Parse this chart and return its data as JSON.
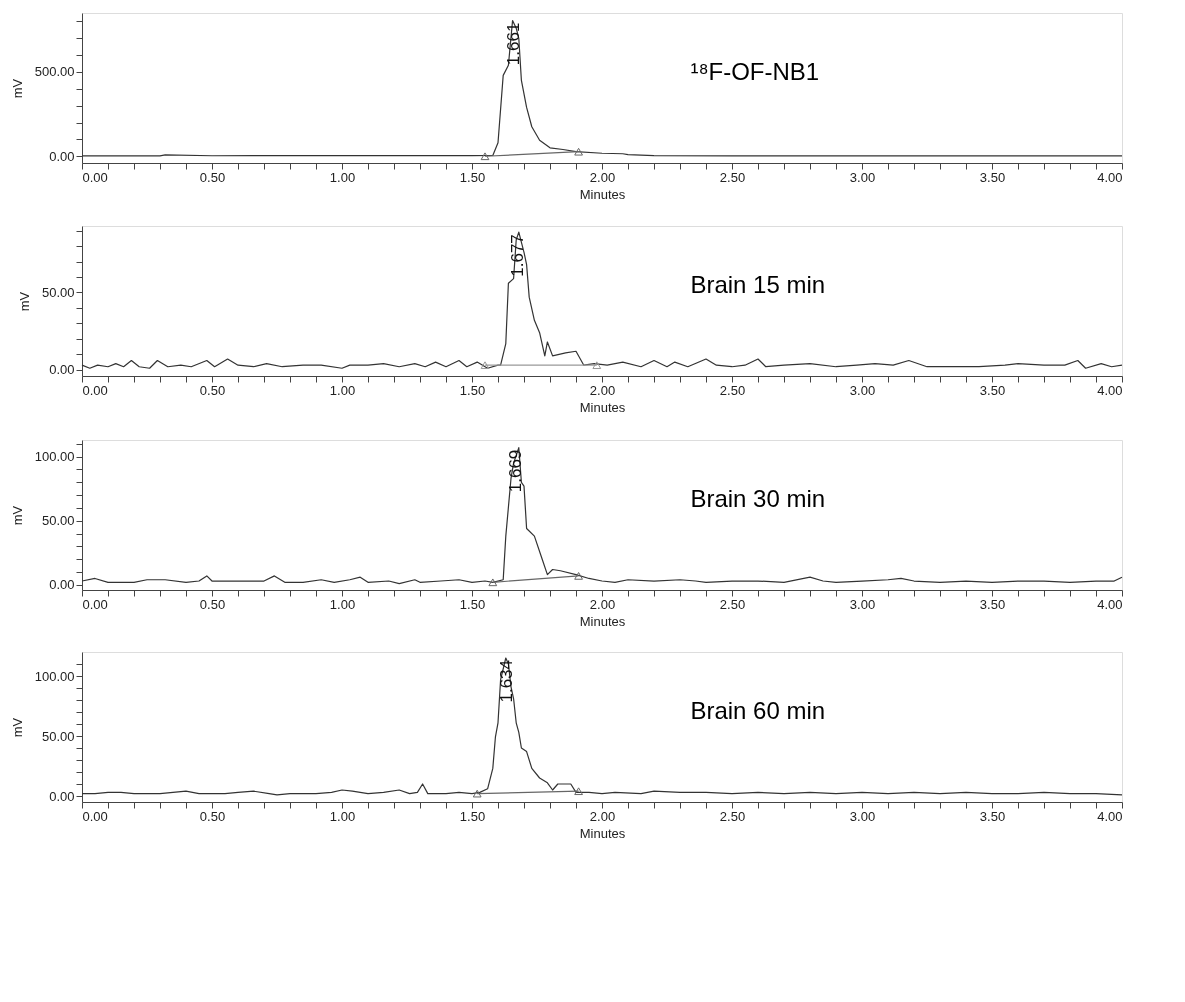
{
  "chart_data": [
    {
      "type": "line",
      "title": "¹⁸F-OF-NB1",
      "xlabel": "Minutes",
      "ylabel": "mV",
      "grid": false,
      "xlim": [
        0,
        4
      ],
      "xticks": [
        {
          "value": 0,
          "label": "0.00"
        },
        {
          "value": 0.1,
          "label": null
        },
        {
          "value": 0.2,
          "label": null
        },
        {
          "value": 0.3,
          "label": null
        },
        {
          "value": 0.4,
          "label": null
        },
        {
          "value": 0.5,
          "label": "0.50"
        },
        {
          "value": 0.6,
          "label": null
        },
        {
          "value": 0.7,
          "label": null
        },
        {
          "value": 0.8,
          "label": null
        },
        {
          "value": 0.9,
          "label": null
        },
        {
          "value": 1,
          "label": "1.00"
        },
        {
          "value": 1.1,
          "label": null
        },
        {
          "value": 1.2,
          "label": null
        },
        {
          "value": 1.3,
          "label": null
        },
        {
          "value": 1.4,
          "label": null
        },
        {
          "value": 1.5,
          "label": "1.50"
        },
        {
          "value": 1.6,
          "label": null
        },
        {
          "value": 1.7,
          "label": null
        },
        {
          "value": 1.8,
          "label": null
        },
        {
          "value": 1.9,
          "label": null
        },
        {
          "value": 2,
          "label": "2.00"
        },
        {
          "value": 2.1,
          "label": null
        },
        {
          "value": 2.2,
          "label": null
        },
        {
          "value": 2.3,
          "label": null
        },
        {
          "value": 2.4,
          "label": null
        },
        {
          "value": 2.5,
          "label": "2.50"
        },
        {
          "value": 2.6,
          "label": null
        },
        {
          "value": 2.7,
          "label": null
        },
        {
          "value": 2.8,
          "label": null
        },
        {
          "value": 2.9,
          "label": null
        },
        {
          "value": 3,
          "label": "3.00"
        },
        {
          "value": 3.1,
          "label": null
        },
        {
          "value": 3.2,
          "label": null
        },
        {
          "value": 3.3,
          "label": null
        },
        {
          "value": 3.4,
          "label": null
        },
        {
          "value": 3.5,
          "label": "3.50"
        },
        {
          "value": 3.6,
          "label": null
        },
        {
          "value": 3.7,
          "label": null
        },
        {
          "value": 3.8,
          "label": null
        },
        {
          "value": 3.9,
          "label": null
        },
        {
          "value": 4,
          "label": "4.00"
        }
      ],
      "ylim": [
        -40,
        850
      ],
      "yticks": [
        {
          "value": 0,
          "label": "0.00"
        },
        {
          "value": 100,
          "label": null
        },
        {
          "value": 200,
          "label": null
        },
        {
          "value": 300,
          "label": null
        },
        {
          "value": 400,
          "label": null
        },
        {
          "value": 500,
          "label": "500.00"
        },
        {
          "value": 600,
          "label": null
        },
        {
          "value": 700,
          "label": null
        },
        {
          "value": 800,
          "label": null
        }
      ],
      "series": [
        {
          "color": "#333333",
          "x": [
            0,
            0.3,
            0.32,
            0.5,
            1.0,
            1.5,
            1.58,
            1.6,
            1.62,
            1.64,
            1.656,
            1.67,
            1.68,
            1.69,
            1.71,
            1.73,
            1.76,
            1.8,
            1.85,
            1.9,
            2.0,
            2.08,
            2.1,
            2.2,
            2.5,
            3.0,
            3.5,
            4.0
          ],
          "values": [
            2,
            2,
            8,
            3,
            4,
            4,
            5,
            80,
            480,
            540,
            805,
            760,
            700,
            450,
            290,
            175,
            95,
            50,
            40,
            28,
            18,
            15,
            10,
            4,
            2,
            2,
            2,
            2
          ]
        },
        {
          "color": "#666666",
          "marker": "triangle",
          "x": [
            1.55,
            1.91
          ],
          "values": [
            0,
            27
          ]
        }
      ],
      "annotations": [
        {
          "text": "1.661",
          "x": 1.661,
          "y": 805
        }
      ]
    },
    {
      "type": "line",
      "title": "Brain 15 min",
      "xlabel": "Minutes",
      "ylabel": "mV",
      "grid": false,
      "xlim": [
        0,
        4
      ],
      "xticks": [
        {
          "value": 0,
          "label": "0.00"
        },
        {
          "value": 0.1,
          "label": null
        },
        {
          "value": 0.2,
          "label": null
        },
        {
          "value": 0.3,
          "label": null
        },
        {
          "value": 0.4,
          "label": null
        },
        {
          "value": 0.5,
          "label": "0.50"
        },
        {
          "value": 0.6,
          "label": null
        },
        {
          "value": 0.7,
          "label": null
        },
        {
          "value": 0.8,
          "label": null
        },
        {
          "value": 0.9,
          "label": null
        },
        {
          "value": 1,
          "label": "1.00"
        },
        {
          "value": 1.1,
          "label": null
        },
        {
          "value": 1.2,
          "label": null
        },
        {
          "value": 1.3,
          "label": null
        },
        {
          "value": 1.4,
          "label": null
        },
        {
          "value": 1.5,
          "label": "1.50"
        },
        {
          "value": 1.6,
          "label": null
        },
        {
          "value": 1.7,
          "label": null
        },
        {
          "value": 1.8,
          "label": null
        },
        {
          "value": 1.9,
          "label": null
        },
        {
          "value": 2,
          "label": "2.00"
        },
        {
          "value": 2.1,
          "label": null
        },
        {
          "value": 2.2,
          "label": null
        },
        {
          "value": 2.3,
          "label": null
        },
        {
          "value": 2.4,
          "label": null
        },
        {
          "value": 2.5,
          "label": "2.50"
        },
        {
          "value": 2.6,
          "label": null
        },
        {
          "value": 2.7,
          "label": null
        },
        {
          "value": 2.8,
          "label": null
        },
        {
          "value": 2.9,
          "label": null
        },
        {
          "value": 3,
          "label": "3.00"
        },
        {
          "value": 3.1,
          "label": null
        },
        {
          "value": 3.2,
          "label": null
        },
        {
          "value": 3.3,
          "label": null
        },
        {
          "value": 3.4,
          "label": null
        },
        {
          "value": 3.5,
          "label": "3.50"
        },
        {
          "value": 3.6,
          "label": null
        },
        {
          "value": 3.7,
          "label": null
        },
        {
          "value": 3.8,
          "label": null
        },
        {
          "value": 3.9,
          "label": null
        },
        {
          "value": 4,
          "label": "4.00"
        }
      ],
      "ylim": [
        -4,
        93
      ],
      "yticks": [
        {
          "value": 0,
          "label": "0.00"
        },
        {
          "value": 10,
          "label": null
        },
        {
          "value": 20,
          "label": null
        },
        {
          "value": 30,
          "label": null
        },
        {
          "value": 40,
          "label": null
        },
        {
          "value": 50,
          "label": "50.00"
        },
        {
          "value": 60,
          "label": null
        },
        {
          "value": 70,
          "label": null
        },
        {
          "value": 80,
          "label": null
        },
        {
          "value": 90,
          "label": null
        }
      ],
      "series": [
        {
          "color": "#333333",
          "x": [
            0,
            0.03,
            0.06,
            0.1,
            0.13,
            0.16,
            0.19,
            0.22,
            0.26,
            0.29,
            0.33,
            0.38,
            0.42,
            0.48,
            0.51,
            0.56,
            0.6,
            0.66,
            0.71,
            0.77,
            0.85,
            0.92,
            1.0,
            1.03,
            1.1,
            1.16,
            1.22,
            1.28,
            1.32,
            1.36,
            1.4,
            1.45,
            1.48,
            1.52,
            1.56,
            1.6,
            1.61,
            1.63,
            1.64,
            1.66,
            1.67,
            1.68,
            1.7,
            1.71,
            1.72,
            1.74,
            1.76,
            1.78,
            1.79,
            1.81,
            1.86,
            1.9,
            1.93,
            1.97,
            2.02,
            2.08,
            2.15,
            2.2,
            2.25,
            2.28,
            2.33,
            2.4,
            2.44,
            2.5,
            2.55,
            2.6,
            2.63,
            2.7,
            2.8,
            2.9,
            2.98,
            3.05,
            3.12,
            3.18,
            3.25,
            3.35,
            3.45,
            3.55,
            3.6,
            3.7,
            3.78,
            3.83,
            3.86,
            3.92,
            3.96,
            4.0
          ],
          "values": [
            3,
            1,
            3,
            2,
            4,
            2,
            6,
            2,
            1,
            6,
            2,
            3,
            2,
            6,
            2,
            7,
            3,
            2,
            4,
            2,
            3,
            3,
            1,
            3,
            3,
            4,
            2,
            4,
            2,
            5,
            2,
            6,
            2,
            5,
            1,
            3,
            3,
            17,
            56,
            59,
            84,
            89,
            76,
            68,
            47,
            32,
            24,
            9,
            18,
            9,
            11,
            12,
            3,
            4,
            3,
            5,
            2,
            6,
            2,
            5,
            2,
            7,
            3,
            2,
            3,
            7,
            2,
            3,
            4,
            2,
            3,
            4,
            3,
            6,
            2,
            2,
            2,
            3,
            4,
            3,
            3,
            6,
            1,
            4,
            2,
            3
          ]
        },
        {
          "color": "#999999",
          "marker": "triangle",
          "x": [
            1.55,
            1.98
          ],
          "values": [
            3,
            3
          ]
        }
      ],
      "annotations": [
        {
          "text": "1.677",
          "x": 1.677,
          "y": 89
        }
      ]
    },
    {
      "type": "line",
      "title": "Brain 30 min",
      "xlabel": "Minutes",
      "ylabel": "mV",
      "grid": false,
      "xlim": [
        0,
        4
      ],
      "xticks": [
        {
          "value": 0,
          "label": "0.00"
        },
        {
          "value": 0.1,
          "label": null
        },
        {
          "value": 0.2,
          "label": null
        },
        {
          "value": 0.3,
          "label": null
        },
        {
          "value": 0.4,
          "label": null
        },
        {
          "value": 0.5,
          "label": "0.50"
        },
        {
          "value": 0.6,
          "label": null
        },
        {
          "value": 0.7,
          "label": null
        },
        {
          "value": 0.8,
          "label": null
        },
        {
          "value": 0.9,
          "label": null
        },
        {
          "value": 1,
          "label": "1.00"
        },
        {
          "value": 1.1,
          "label": null
        },
        {
          "value": 1.2,
          "label": null
        },
        {
          "value": 1.3,
          "label": null
        },
        {
          "value": 1.4,
          "label": null
        },
        {
          "value": 1.5,
          "label": "1.50"
        },
        {
          "value": 1.6,
          "label": null
        },
        {
          "value": 1.7,
          "label": null
        },
        {
          "value": 1.8,
          "label": null
        },
        {
          "value": 1.9,
          "label": null
        },
        {
          "value": 2,
          "label": "2.00"
        },
        {
          "value": 2.1,
          "label": null
        },
        {
          "value": 2.2,
          "label": null
        },
        {
          "value": 2.3,
          "label": null
        },
        {
          "value": 2.4,
          "label": null
        },
        {
          "value": 2.5,
          "label": "2.50"
        },
        {
          "value": 2.6,
          "label": null
        },
        {
          "value": 2.7,
          "label": null
        },
        {
          "value": 2.8,
          "label": null
        },
        {
          "value": 2.9,
          "label": null
        },
        {
          "value": 3,
          "label": "3.00"
        },
        {
          "value": 3.1,
          "label": null
        },
        {
          "value": 3.2,
          "label": null
        },
        {
          "value": 3.3,
          "label": null
        },
        {
          "value": 3.4,
          "label": null
        },
        {
          "value": 3.5,
          "label": "3.50"
        },
        {
          "value": 3.6,
          "label": null
        },
        {
          "value": 3.7,
          "label": null
        },
        {
          "value": 3.8,
          "label": null
        },
        {
          "value": 3.9,
          "label": null
        },
        {
          "value": 4,
          "label": "4.00"
        }
      ],
      "ylim": [
        -4,
        113
      ],
      "yticks": [
        {
          "value": 0,
          "label": "0.00"
        },
        {
          "value": 10,
          "label": null
        },
        {
          "value": 20,
          "label": null
        },
        {
          "value": 30,
          "label": null
        },
        {
          "value": 40,
          "label": null
        },
        {
          "value": 50,
          "label": "50.00"
        },
        {
          "value": 60,
          "label": null
        },
        {
          "value": 70,
          "label": null
        },
        {
          "value": 80,
          "label": null
        },
        {
          "value": 90,
          "label": null
        },
        {
          "value": 100,
          "label": "100.00"
        },
        {
          "value": 110,
          "label": null
        }
      ],
      "series": [
        {
          "color": "#333333",
          "x": [
            0,
            0.05,
            0.1,
            0.2,
            0.25,
            0.32,
            0.4,
            0.45,
            0.48,
            0.5,
            0.6,
            0.7,
            0.74,
            0.78,
            0.85,
            0.92,
            0.97,
            1.03,
            1.07,
            1.1,
            1.18,
            1.22,
            1.28,
            1.3,
            1.38,
            1.45,
            1.5,
            1.55,
            1.58,
            1.62,
            1.63,
            1.65,
            1.66,
            1.68,
            1.69,
            1.7,
            1.71,
            1.74,
            1.77,
            1.79,
            1.81,
            1.84,
            1.9,
            1.95,
            2.0,
            2.05,
            2.1,
            2.2,
            2.3,
            2.36,
            2.4,
            2.5,
            2.6,
            2.7,
            2.8,
            2.85,
            2.9,
            3.0,
            3.1,
            3.15,
            3.2,
            3.3,
            3.4,
            3.5,
            3.6,
            3.7,
            3.8,
            3.9,
            3.97,
            4.0
          ],
          "values": [
            3,
            5,
            2,
            2,
            4,
            4,
            2,
            3,
            7,
            3,
            3,
            3,
            7,
            2,
            2,
            4,
            2,
            4,
            6,
            2,
            3,
            1,
            4,
            2,
            3,
            4,
            2,
            3,
            2,
            4,
            38,
            83,
            95,
            107,
            80,
            77,
            44,
            38,
            20,
            8,
            12,
            11,
            8,
            5,
            3,
            2,
            4,
            3,
            4,
            3,
            2,
            3,
            3,
            2,
            6,
            3,
            2,
            3,
            4,
            5,
            3,
            2,
            3,
            2,
            3,
            3,
            2,
            3,
            3,
            6
          ]
        },
        {
          "color": "#666666",
          "marker": "triangle",
          "x": [
            1.58,
            1.91
          ],
          "values": [
            2,
            7
          ]
        }
      ],
      "annotations": [
        {
          "text": "1.669",
          "x": 1.669,
          "y": 107
        }
      ]
    },
    {
      "type": "line",
      "title": "Brain 60 min",
      "xlabel": "Minutes",
      "ylabel": "mV",
      "grid": false,
      "xlim": [
        0,
        4
      ],
      "xticks": [
        {
          "value": 0,
          "label": "0.00"
        },
        {
          "value": 0.1,
          "label": null
        },
        {
          "value": 0.2,
          "label": null
        },
        {
          "value": 0.3,
          "label": null
        },
        {
          "value": 0.4,
          "label": null
        },
        {
          "value": 0.5,
          "label": "0.50"
        },
        {
          "value": 0.6,
          "label": null
        },
        {
          "value": 0.7,
          "label": null
        },
        {
          "value": 0.8,
          "label": null
        },
        {
          "value": 0.9,
          "label": null
        },
        {
          "value": 1,
          "label": "1.00"
        },
        {
          "value": 1.1,
          "label": null
        },
        {
          "value": 1.2,
          "label": null
        },
        {
          "value": 1.3,
          "label": null
        },
        {
          "value": 1.4,
          "label": null
        },
        {
          "value": 1.5,
          "label": "1.50"
        },
        {
          "value": 1.6,
          "label": null
        },
        {
          "value": 1.7,
          "label": null
        },
        {
          "value": 1.8,
          "label": null
        },
        {
          "value": 1.9,
          "label": null
        },
        {
          "value": 2,
          "label": "2.00"
        },
        {
          "value": 2.1,
          "label": null
        },
        {
          "value": 2.2,
          "label": null
        },
        {
          "value": 2.3,
          "label": null
        },
        {
          "value": 2.4,
          "label": null
        },
        {
          "value": 2.5,
          "label": "2.50"
        },
        {
          "value": 2.6,
          "label": null
        },
        {
          "value": 2.7,
          "label": null
        },
        {
          "value": 2.8,
          "label": null
        },
        {
          "value": 2.9,
          "label": null
        },
        {
          "value": 3,
          "label": "3.00"
        },
        {
          "value": 3.1,
          "label": null
        },
        {
          "value": 3.2,
          "label": null
        },
        {
          "value": 3.3,
          "label": null
        },
        {
          "value": 3.4,
          "label": null
        },
        {
          "value": 3.5,
          "label": "3.50"
        },
        {
          "value": 3.6,
          "label": null
        },
        {
          "value": 3.7,
          "label": null
        },
        {
          "value": 3.8,
          "label": null
        },
        {
          "value": 3.9,
          "label": null
        },
        {
          "value": 4,
          "label": "4.00"
        }
      ],
      "ylim": [
        -5,
        120
      ],
      "yticks": [
        {
          "value": 0,
          "label": "0.00"
        },
        {
          "value": 10,
          "label": null
        },
        {
          "value": 20,
          "label": null
        },
        {
          "value": 30,
          "label": null
        },
        {
          "value": 40,
          "label": null
        },
        {
          "value": 50,
          "label": "50.00"
        },
        {
          "value": 60,
          "label": null
        },
        {
          "value": 70,
          "label": null
        },
        {
          "value": 80,
          "label": null
        },
        {
          "value": 90,
          "label": null
        },
        {
          "value": 100,
          "label": "100.00"
        },
        {
          "value": 110,
          "label": null
        }
      ],
      "series": [
        {
          "color": "#333333",
          "x": [
            0,
            0.05,
            0.1,
            0.15,
            0.2,
            0.3,
            0.35,
            0.4,
            0.45,
            0.55,
            0.6,
            0.66,
            0.72,
            0.75,
            0.8,
            0.9,
            0.96,
            1.0,
            1.04,
            1.1,
            1.16,
            1.22,
            1.26,
            1.29,
            1.31,
            1.33,
            1.4,
            1.45,
            1.5,
            1.53,
            1.56,
            1.58,
            1.59,
            1.6,
            1.61,
            1.63,
            1.64,
            1.65,
            1.66,
            1.67,
            1.68,
            1.69,
            1.71,
            1.73,
            1.76,
            1.79,
            1.81,
            1.83,
            1.88,
            1.9,
            1.95,
            2.0,
            2.05,
            2.15,
            2.2,
            2.3,
            2.4,
            2.5,
            2.6,
            2.7,
            2.8,
            2.9,
            3.0,
            3.1,
            3.2,
            3.3,
            3.4,
            3.5,
            3.6,
            3.7,
            3.8,
            3.9,
            4.0
          ],
          "values": [
            2,
            2,
            3,
            3,
            2,
            2,
            3,
            4,
            2,
            2,
            3,
            4,
            2,
            1,
            2,
            2,
            3,
            5,
            4,
            2,
            3,
            5,
            2,
            3,
            10,
            2,
            2,
            3,
            2,
            3,
            6,
            23,
            49,
            61,
            97,
            115,
            110,
            91,
            81,
            61,
            53,
            40,
            37,
            23,
            15,
            11,
            5,
            10,
            10,
            3,
            3,
            2,
            3,
            2,
            4,
            3,
            3,
            2,
            3,
            2,
            3,
            2,
            3,
            2,
            3,
            2,
            3,
            2,
            2,
            3,
            2,
            2,
            1
          ]
        },
        {
          "color": "#666666",
          "marker": "triangle",
          "x": [
            1.52,
            1.91
          ],
          "values": [
            2,
            4
          ]
        }
      ],
      "annotations": [
        {
          "text": "1.634",
          "x": 1.634,
          "y": 115
        }
      ]
    }
  ]
}
